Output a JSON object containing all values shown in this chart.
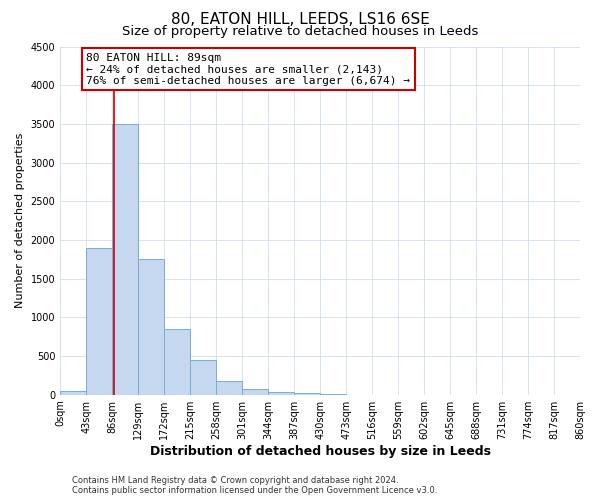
{
  "title": "80, EATON HILL, LEEDS, LS16 6SE",
  "subtitle": "Size of property relative to detached houses in Leeds",
  "xlabel": "Distribution of detached houses by size in Leeds",
  "ylabel": "Number of detached properties",
  "bin_edges": [
    0,
    43,
    86,
    129,
    172,
    215,
    258,
    301,
    344,
    387,
    430,
    473,
    516,
    559,
    602,
    645,
    688,
    731,
    774,
    817,
    860
  ],
  "bar_heights": [
    50,
    1900,
    3500,
    1750,
    850,
    450,
    175,
    75,
    30,
    20,
    5,
    0,
    0,
    0,
    0,
    0,
    0,
    0,
    0,
    0
  ],
  "bar_color": "#c5d8f0",
  "bar_edge_color": "#7aadd4",
  "property_size": 89,
  "property_line_color": "#cc0000",
  "ylim": [
    0,
    4500
  ],
  "yticks": [
    0,
    500,
    1000,
    1500,
    2000,
    2500,
    3000,
    3500,
    4000,
    4500
  ],
  "annotation_line1": "80 EATON HILL: 89sqm",
  "annotation_line2": "← 24% of detached houses are smaller (2,143)",
  "annotation_line3": "76% of semi-detached houses are larger (6,674) →",
  "annotation_box_color": "#cc0000",
  "footnote1": "Contains HM Land Registry data © Crown copyright and database right 2024.",
  "footnote2": "Contains public sector information licensed under the Open Government Licence v3.0.",
  "background_color": "#ffffff",
  "grid_color": "#d0ddf0",
  "title_fontsize": 11,
  "subtitle_fontsize": 9.5,
  "tick_label_fontsize": 7,
  "ylabel_fontsize": 8,
  "xlabel_fontsize": 9,
  "footnote_fontsize": 6,
  "annotation_fontsize": 8
}
